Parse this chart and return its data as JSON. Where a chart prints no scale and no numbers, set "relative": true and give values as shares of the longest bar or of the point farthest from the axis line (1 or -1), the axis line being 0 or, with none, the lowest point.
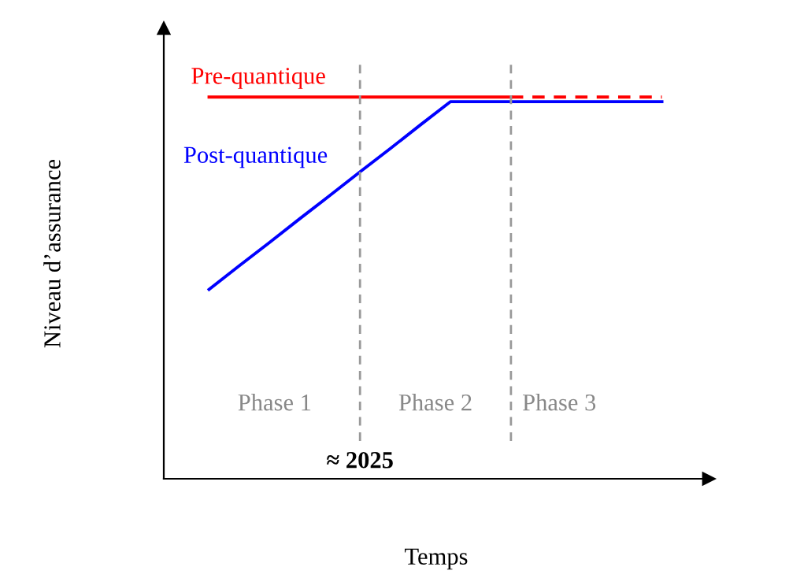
{
  "chart_data": {
    "type": "line",
    "relative": true,
    "xlabel": "Temps",
    "ylabel": "Niveau d’assurance",
    "marker": "none",
    "categories": [
      null,
      null,
      null,
      null,
      null,
      null,
      null,
      null,
      null,
      null,
      null,
      null,
      null,
      null,
      null,
      null
    ],
    "series": [
      {
        "name": "Pre-quantique",
        "color": "#ff0000",
        "values": [
          1,
          1,
          1,
          1,
          1,
          1,
          1,
          1,
          1,
          1,
          1,
          null,
          null,
          null,
          null,
          null
        ],
        "line_style": "solid"
      },
      {
        "color": "#ff0000",
        "values": [
          null,
          null,
          null,
          null,
          null,
          null,
          null,
          null,
          null,
          null,
          1,
          1,
          1,
          1,
          1,
          1
        ],
        "line_style": "dashed"
      },
      {
        "name": "Post-quantique",
        "color": "#0000ff",
        "values": [
          0.496,
          0.558,
          0.619,
          0.681,
          0.742,
          0.804,
          0.865,
          0.927,
          0.988,
          0.988,
          0.988,
          0.988,
          0.988,
          0.988,
          0.988,
          0.988
        ],
        "line_style": "solid"
      }
    ],
    "annotations": [
      "Phase 1",
      "Phase 2",
      "Phase 3",
      "≈ 2025"
    ]
  }
}
